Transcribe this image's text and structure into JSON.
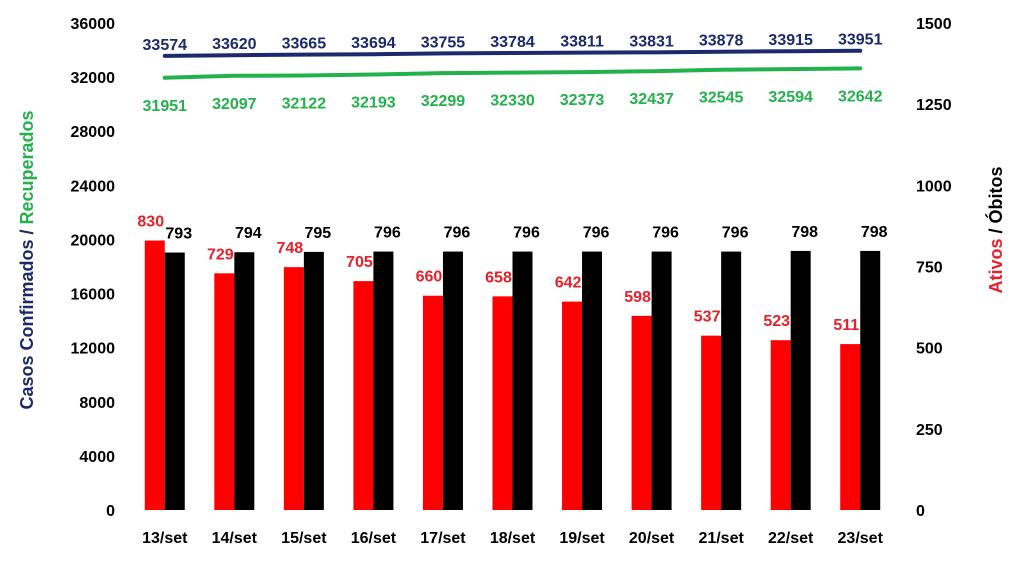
{
  "chart_data": {
    "type": "bar",
    "categories": [
      "13/set",
      "14/set",
      "15/set",
      "16/set",
      "17/set",
      "18/set",
      "19/set",
      "20/set",
      "21/set",
      "22/set",
      "23/set"
    ],
    "left_axis": {
      "title_part1": "Casos Confirmados",
      "title_sep": " / ",
      "title_part2": "Recuperados",
      "range": [
        0,
        36000
      ],
      "ticks": [
        "0",
        "4000",
        "8000",
        "12000",
        "16000",
        "20000",
        "24000",
        "28000",
        "32000",
        "36000"
      ]
    },
    "right_axis": {
      "title_part1": "Ativos",
      "title_sep": " / ",
      "title_part2": "Óbitos",
      "range": [
        0,
        1500
      ],
      "ticks": [
        "0",
        "250",
        "500",
        "750",
        "1000",
        "1250",
        "1500"
      ]
    },
    "series": [
      {
        "key": "confirmados",
        "kind": "line",
        "axis": "left",
        "color": "#1a2a6c",
        "values": [
          33574,
          33620,
          33665,
          33694,
          33755,
          33784,
          33811,
          33831,
          33878,
          33915,
          33951
        ]
      },
      {
        "key": "recuperados",
        "kind": "line",
        "axis": "left",
        "color": "#22b14c",
        "values": [
          31951,
          32097,
          32122,
          32193,
          32299,
          32330,
          32373,
          32437,
          32545,
          32594,
          32642
        ]
      },
      {
        "key": "ativos",
        "kind": "bar",
        "axis": "right",
        "color": "#ff0000",
        "label_color": "#e8202a",
        "values": [
          830,
          729,
          748,
          705,
          660,
          658,
          642,
          598,
          537,
          523,
          511
        ]
      },
      {
        "key": "obitos",
        "kind": "bar",
        "axis": "right",
        "color": "#000000",
        "values": [
          793,
          794,
          795,
          796,
          796,
          796,
          796,
          796,
          796,
          798,
          798
        ]
      }
    ],
    "colors": {
      "confirmados_title": "#1a2a6c",
      "recuperados_title": "#22b14c",
      "ativos_title": "#e8202a",
      "obitos_title": "#000000"
    },
    "grid": false,
    "legend": "none"
  }
}
